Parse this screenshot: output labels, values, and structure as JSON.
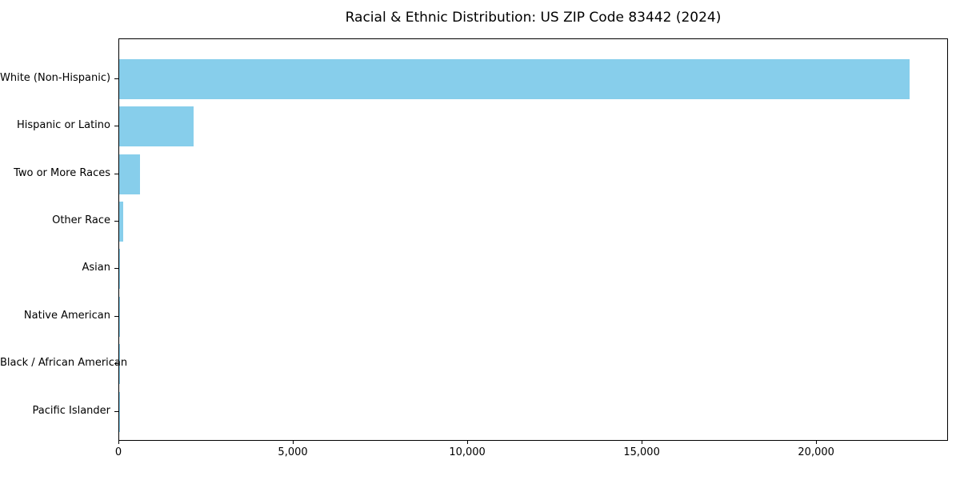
{
  "figure": {
    "background": "#ffffff",
    "frame_color": "#000000"
  },
  "chart_data": {
    "type": "bar",
    "orientation": "horizontal",
    "title": "Racial & Ethnic Distribution: US ZIP Code 83442 (2024)",
    "categories": [
      "White (Non-Hispanic)",
      "Hispanic or Latino",
      "Two or More Races",
      "Other Race",
      "Asian",
      "Native American",
      "Black / African American",
      "Pacific Islander"
    ],
    "values": [
      22650,
      2130,
      600,
      125,
      25,
      20,
      10,
      5
    ],
    "xlabel": "",
    "ylabel": "",
    "xlim": [
      0,
      23780
    ],
    "xticks": [
      0,
      5000,
      10000,
      15000,
      20000
    ],
    "xtick_labels": [
      "0",
      "5,000",
      "10,000",
      "15,000",
      "20,000"
    ],
    "bar_color": "#87CEEB",
    "grid": false,
    "legend": null
  }
}
